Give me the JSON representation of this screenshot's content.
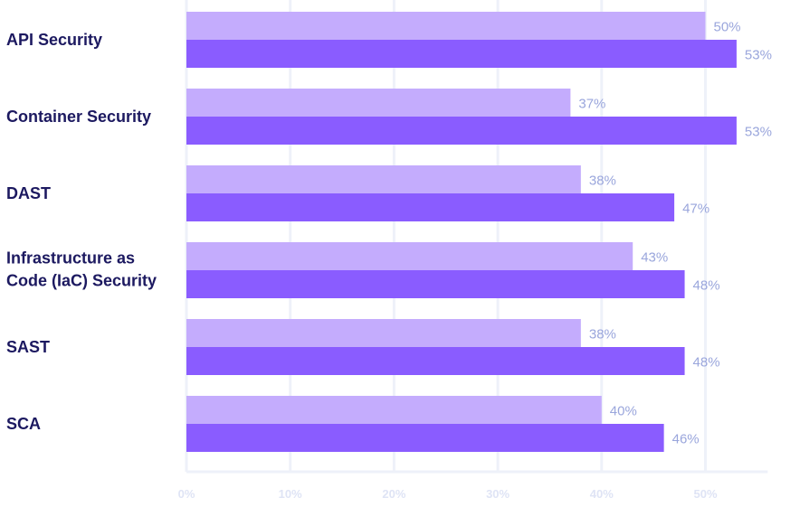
{
  "chart_data": {
    "type": "bar",
    "orientation": "horizontal",
    "categories": [
      [
        "API Security"
      ],
      [
        "Container Security"
      ],
      [
        "DAST"
      ],
      [
        "Infrastructure as",
        "Code (IaC) Security"
      ],
      [
        "SAST"
      ],
      [
        "SCA"
      ]
    ],
    "series": [
      {
        "values": [
          50,
          37,
          38,
          43,
          38,
          40
        ],
        "color": "#c4acfd"
      },
      {
        "values": [
          53,
          53,
          47,
          48,
          48,
          46
        ],
        "color": "#8a5cff"
      }
    ],
    "value_suffix": "%",
    "xlim": [
      0,
      56
    ],
    "xticks": [
      0,
      10,
      20,
      30,
      40,
      50
    ],
    "xtick_labels": [
      "0%",
      "10%",
      "20%",
      "30%",
      "40%",
      "50%"
    ],
    "grid": true,
    "legend": "none"
  },
  "colors": {
    "category_text": "#1c1960",
    "value_text": "#9aa6dc",
    "tick_text": "#dfe4f5",
    "grid": "#eef1f9"
  }
}
